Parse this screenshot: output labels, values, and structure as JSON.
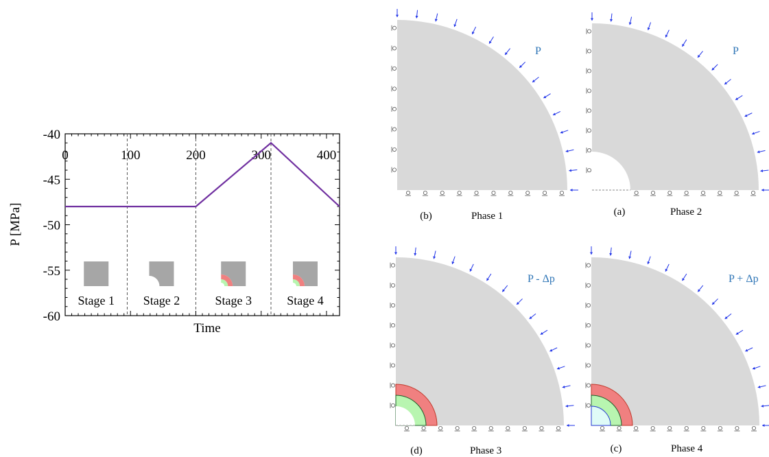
{
  "chart_data": {
    "type": "line",
    "xlabel": "Time",
    "ylabel": "P [MPa]",
    "xlim": [
      0,
      420
    ],
    "ylim": [
      -60,
      -40
    ],
    "x_ticks": [
      "0",
      "100",
      "200",
      "300",
      "400"
    ],
    "y_ticks": [
      "-40",
      "-45",
      "-50",
      "-55",
      "-60"
    ],
    "series": [
      {
        "x": [
          0,
          200,
          315,
          420
        ],
        "y": [
          -48,
          -48,
          -41,
          -48
        ]
      }
    ],
    "stage_boundaries": [
      95,
      200,
      315
    ],
    "stages": [
      "Stage 1",
      "Stage 2",
      "Stage 3",
      "Stage 4"
    ],
    "colors": {
      "line": "#7030a0",
      "thumb": "#a6a6a6",
      "ring_outer": "#f08080",
      "ring_inner": "#b8f5b0"
    }
  },
  "panels": [
    {
      "caption_letter": "(b)",
      "caption_phase": "Phase 1",
      "load_label": "P"
    },
    {
      "caption_letter": "(a)",
      "caption_phase": "Phase 2",
      "load_label": "P"
    },
    {
      "caption_letter": "(d)",
      "caption_phase": "Phase 3",
      "load_label": "P - Δp"
    },
    {
      "caption_letter": "(c)",
      "caption_phase": "Phase 4",
      "load_label": "P + Δp"
    }
  ],
  "colors": {
    "domain": "#d9d9d9",
    "arrow": "#1f33e8",
    "load_label": "#2e75b6",
    "support": "#555555"
  }
}
